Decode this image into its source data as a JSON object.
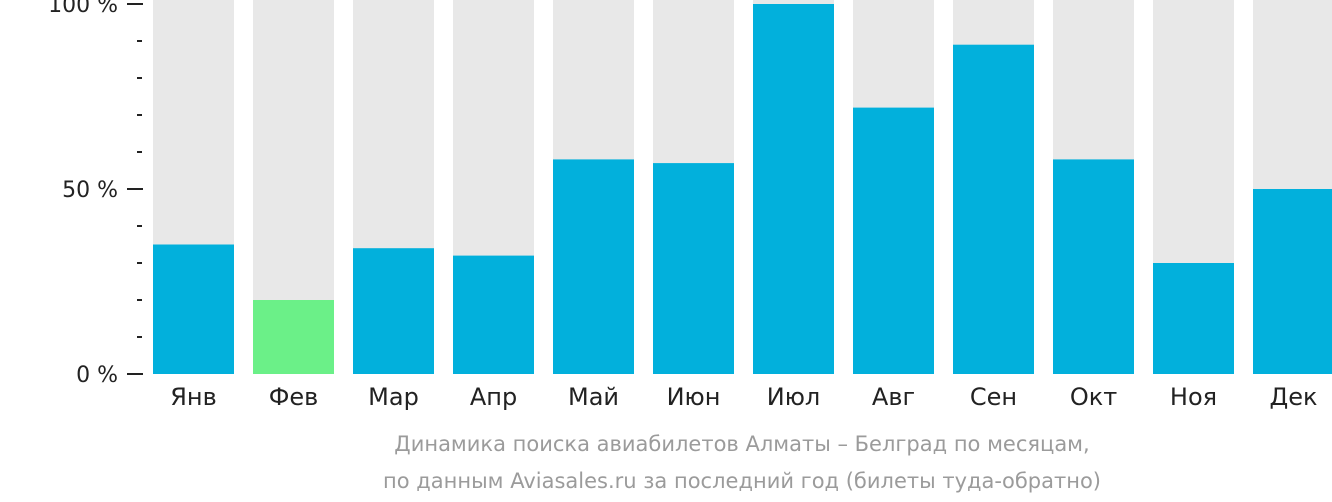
{
  "colors": {
    "bar": "#02b0dc",
    "highlight": "#6bf088",
    "track": "#e8e8e8",
    "axis": "#222222",
    "caption": "#9b9b9b"
  },
  "chart_data": {
    "type": "bar",
    "categories": [
      "Янв",
      "Фев",
      "Мар",
      "Апр",
      "Май",
      "Июн",
      "Июл",
      "Авг",
      "Сен",
      "Окт",
      "Ноя",
      "Дек"
    ],
    "values": [
      35,
      20,
      34,
      32,
      58,
      57,
      100,
      72,
      89,
      58,
      30,
      50
    ],
    "highlighted_index": 1,
    "ylim": [
      0,
      100
    ],
    "yticks": [
      {
        "value": 0,
        "label": "0 %"
      },
      {
        "value": 50,
        "label": "50 %"
      },
      {
        "value": 100,
        "label": "100 %"
      }
    ],
    "minor_tick_step": 10,
    "grid": false
  },
  "caption": {
    "line1": "Динамика поиска авиабилетов Алматы – Белград по месяцам,",
    "line2": "по данным Aviasales.ru за последний год (билеты туда-обратно)"
  }
}
